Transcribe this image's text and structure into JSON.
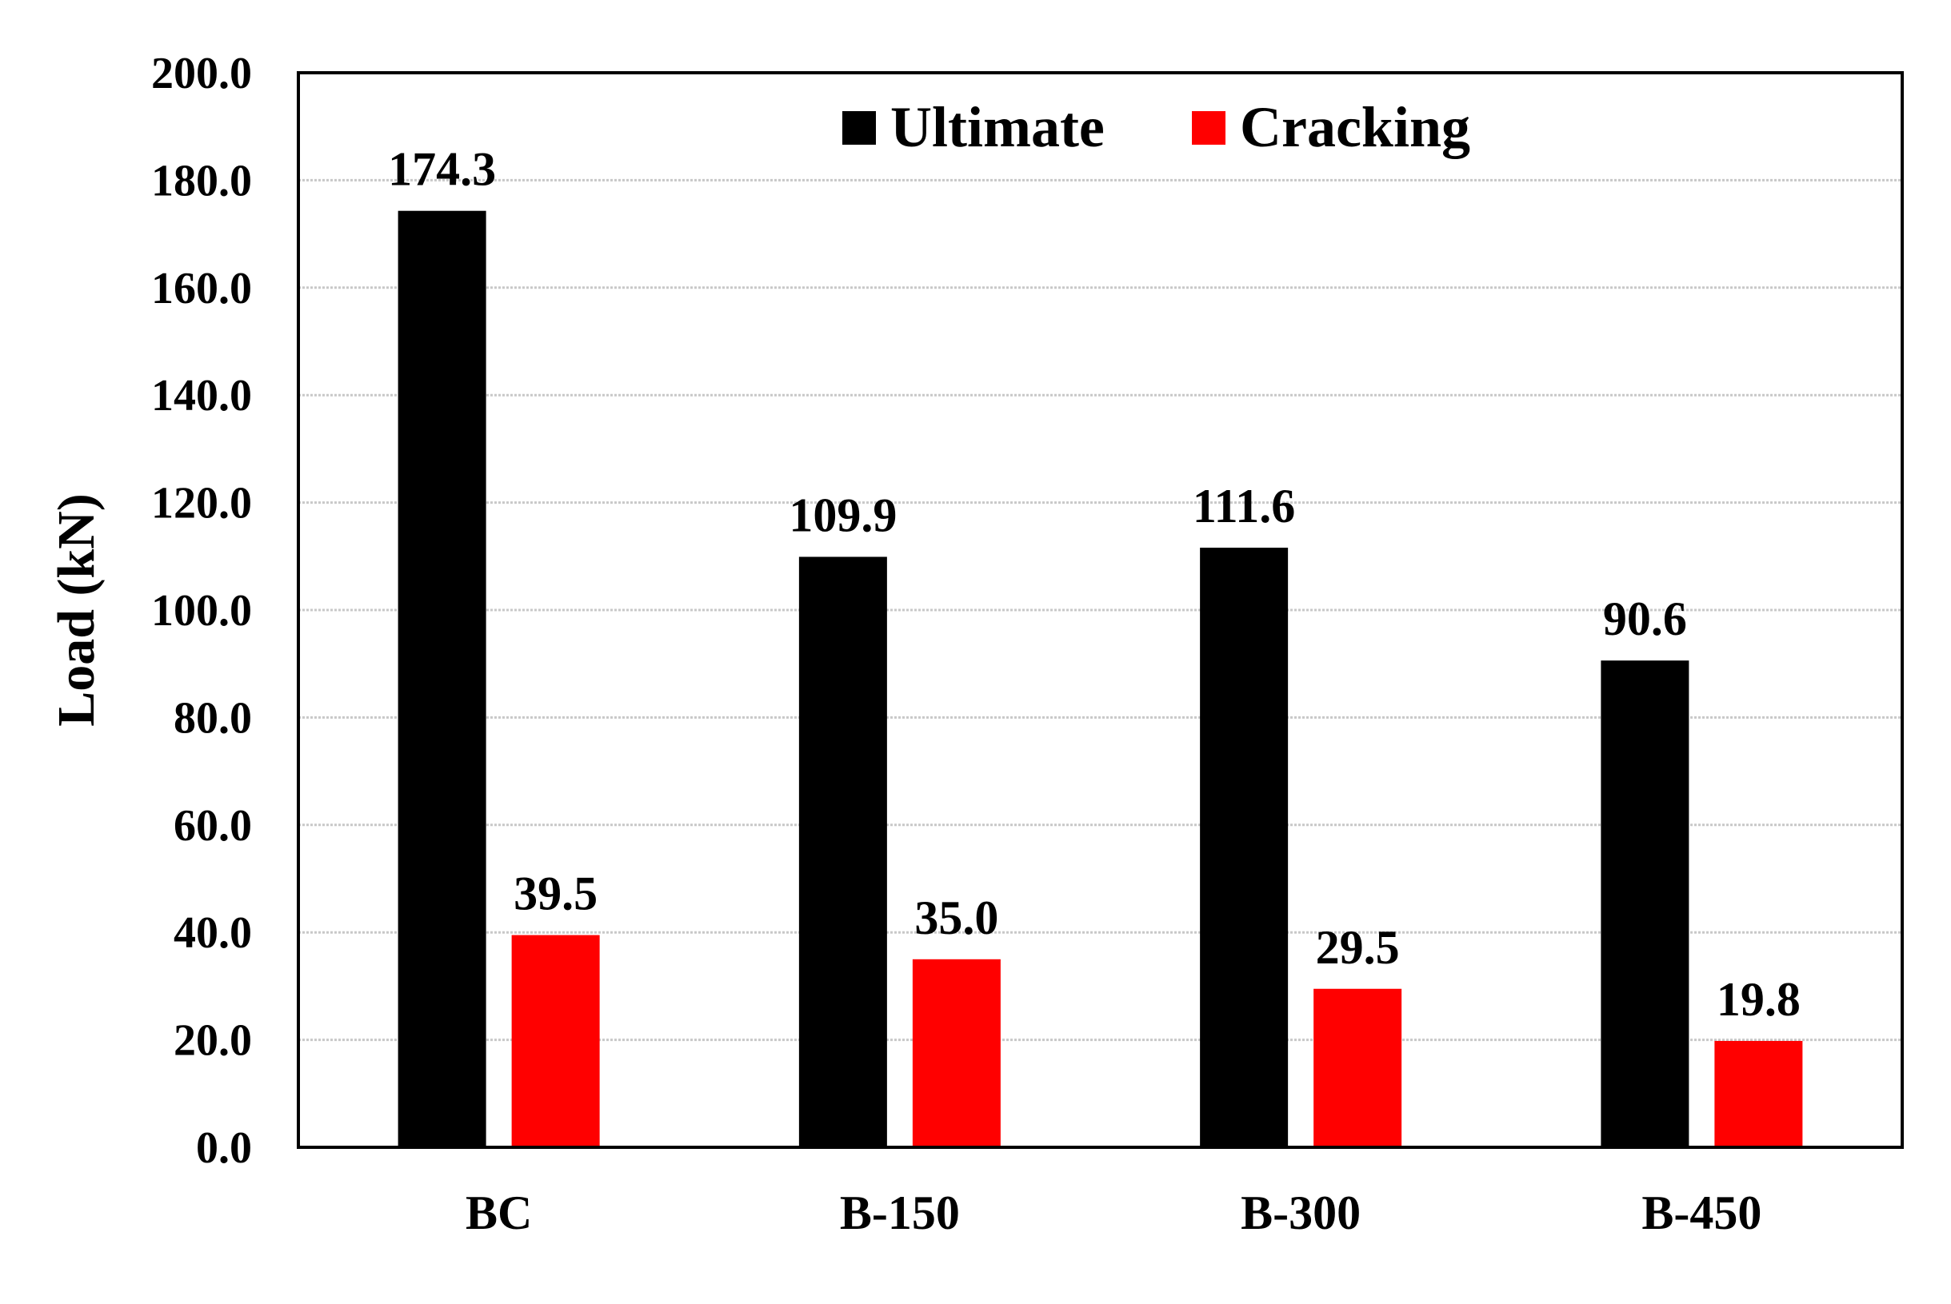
{
  "chart_data": {
    "type": "bar",
    "title": "",
    "xlabel": "",
    "ylabel": "Load (kN)",
    "ylim": [
      0,
      200
    ],
    "ytick_step": 20,
    "ytick_labels": [
      "0.0",
      "20.0",
      "40.0",
      "60.0",
      "80.0",
      "100.0",
      "120.0",
      "140.0",
      "160.0",
      "180.0",
      "200.0"
    ],
    "grid": true,
    "legend_position": "top-center",
    "categories": [
      "BC",
      "B-150",
      "B-300",
      "B-450"
    ],
    "series": [
      {
        "name": "Ultimate",
        "color": "#000000",
        "values": [
          174.3,
          109.9,
          111.6,
          90.6
        ],
        "labels": [
          "174.3",
          "109.9",
          "111.6",
          "90.6"
        ]
      },
      {
        "name": "Cracking",
        "color": "#ff0000",
        "values": [
          39.5,
          35.0,
          29.5,
          19.8
        ],
        "labels": [
          "39.5",
          "35.0",
          "29.5",
          "19.8"
        ]
      }
    ]
  }
}
